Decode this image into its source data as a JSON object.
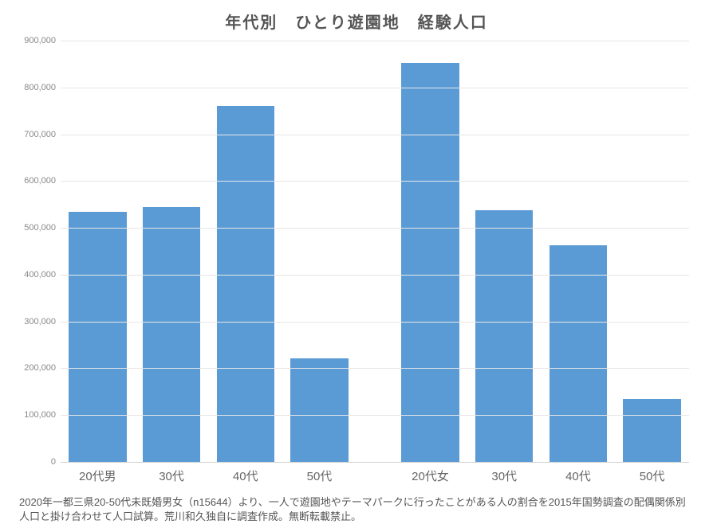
{
  "chart": {
    "type": "bar",
    "title": "年代別　ひとり遊園地　経験人口",
    "title_fontsize": 20,
    "title_color": "#555555",
    "background_color": "#ffffff",
    "bar_color": "#5b9bd5",
    "grid_color": "#e6e6e6",
    "axis_text_color": "#888888",
    "xlabel_color": "#666666",
    "xlabel_fontsize": 15,
    "ylabel_fontsize": 11,
    "ylim": [
      0,
      900000
    ],
    "ytick_step": 100000,
    "yticks": [
      0,
      100000,
      200000,
      300000,
      400000,
      500000,
      600000,
      700000,
      800000,
      900000
    ],
    "ytick_labels": [
      "0",
      "100,000",
      "200,000",
      "300,000",
      "400,000",
      "500,000",
      "600,000",
      "700,000",
      "800,000",
      "900,000"
    ],
    "categories": [
      "20代男",
      "30代",
      "40代",
      "50代",
      "",
      "20代女",
      "30代",
      "40代",
      "50代"
    ],
    "values": [
      535000,
      545000,
      760000,
      222000,
      null,
      852000,
      538000,
      463000,
      135000
    ],
    "bar_width": 0.78,
    "group_gap_after_index": 3
  },
  "footnote": "2020年一都三県20-50代未既婚男女（n15644）より、一人で遊園地やテーマパークに行ったことがある人の割合を2015年国勢調査の配偶関係別人口と掛け合わせて人口試算。荒川和久独自に調査作成。無断転載禁止。"
}
